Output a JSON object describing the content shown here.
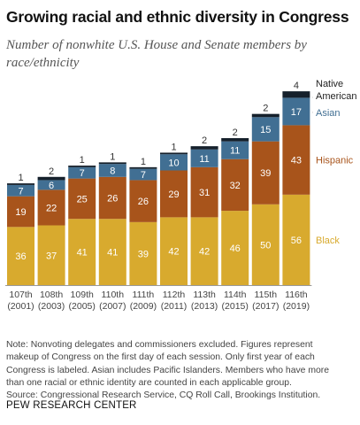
{
  "header": {
    "title": "Growing racial and ethnic diversity in Congress",
    "subtitle": "Number of nonwhite U.S. House and Senate members by race/ethnicity"
  },
  "chart_data": {
    "type": "bar",
    "stacked": true,
    "title": "Growing racial and ethnic diversity in Congress",
    "subtitle": "Number of nonwhite U.S. House and Senate members by race/ethnicity",
    "categories": [
      "107th",
      "108th",
      "109th",
      "110th",
      "111th",
      "112th",
      "113th",
      "114th",
      "115th",
      "116th"
    ],
    "category_years": [
      "(2001)",
      "(2003)",
      "(2005)",
      "(2007)",
      "(2009)",
      "(2011)",
      "(2013)",
      "(2015)",
      "(2017)",
      "(2019)"
    ],
    "series": [
      {
        "name": "Black",
        "color": "#d8aa2e",
        "label_color": "#ffffff",
        "values": [
          36,
          37,
          41,
          41,
          39,
          42,
          42,
          46,
          50,
          56
        ]
      },
      {
        "name": "Hispanic",
        "color": "#a8541b",
        "label_color": "#ffffff",
        "values": [
          19,
          22,
          25,
          26,
          26,
          29,
          31,
          32,
          39,
          43
        ]
      },
      {
        "name": "Asian",
        "color": "#416f93",
        "label_color": "#ffffff",
        "values": [
          7,
          6,
          7,
          8,
          7,
          10,
          11,
          11,
          15,
          17
        ]
      },
      {
        "name": "Native American",
        "color": "#15202b",
        "label_color": "#333333",
        "values": [
          1,
          2,
          1,
          1,
          1,
          1,
          2,
          2,
          2,
          4
        ]
      }
    ],
    "legend": {
      "placement": "right",
      "entries": [
        {
          "label": "Native",
          "label2": "American",
          "color": "#222222"
        },
        {
          "label": "Asian",
          "color": "#416f93"
        },
        {
          "label": "Hispanic",
          "color": "#a8541b"
        },
        {
          "label": "Black",
          "color": "#d8aa2e"
        }
      ]
    },
    "xlabel": "",
    "ylabel": "",
    "ylim": [
      0,
      120
    ],
    "grid": false
  },
  "note": {
    "lines": [
      "Note: Nonvoting delegates and commissioners excluded. Figures represent",
      "makeup of Congress on the first day of each session. Only first year of each",
      "Congress is labeled. Asian includes Pacific Islanders. Members who have more",
      "than one racial or ethnic identity are counted in each applicable group.",
      "Source: Congressional Research Service, CQ Roll Call, Brookings Institution."
    ]
  },
  "footer": {
    "brand": "PEW RESEARCH CENTER"
  }
}
